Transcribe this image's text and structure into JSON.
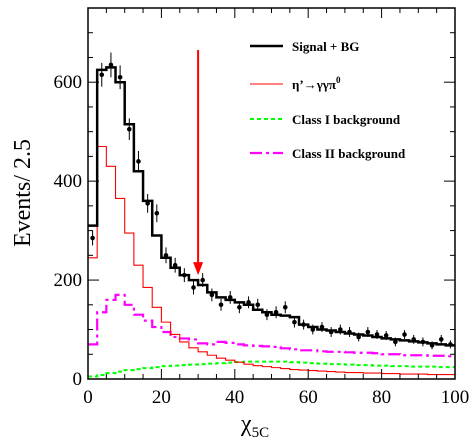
{
  "chart_data": {
    "type": "line",
    "ylabel": "Events/ 2.5",
    "xlabel_main": "χ",
    "xlabel_sub": "5C",
    "xlim": [
      0,
      100
    ],
    "ylim": [
      0,
      750
    ],
    "x_ticks": [
      0,
      20,
      40,
      60,
      80,
      100
    ],
    "y_ticks": [
      0,
      200,
      400,
      600
    ],
    "grid": false,
    "legend_position": "top-right",
    "bin_edges": [
      0,
      2.5,
      5,
      7.5,
      10,
      12.5,
      15,
      17.5,
      20,
      22.5,
      25,
      27.5,
      30,
      32.5,
      35,
      37.5,
      40,
      42.5,
      45,
      47.5,
      50,
      52.5,
      55,
      57.5,
      60,
      62.5,
      65,
      67.5,
      70,
      72.5,
      75,
      77.5,
      80,
      82.5,
      85,
      87.5,
      90,
      92.5,
      95,
      97.5,
      100
    ],
    "series": [
      {
        "name": "Signal + BG",
        "color": "#000000",
        "style": "step-solid-thick",
        "values": [
          310,
          625,
          630,
          600,
          515,
          420,
          360,
          290,
          245,
          225,
          210,
          200,
          190,
          175,
          165,
          160,
          155,
          150,
          140,
          135,
          130,
          128,
          125,
          110,
          105,
          100,
          98,
          95,
          92,
          90,
          88,
          85,
          82,
          80,
          78,
          76,
          74,
          72,
          70,
          68
        ]
      },
      {
        "name": "η’→γγπ",
        "name_sup": "0",
        "color": "#ff0000",
        "style": "step-solid-thin",
        "values": [
          245,
          470,
          430,
          365,
          295,
          230,
          185,
          145,
          115,
          90,
          75,
          63,
          55,
          48,
          42,
          38,
          34,
          30,
          27,
          25,
          23,
          21,
          19,
          18,
          17,
          16,
          15,
          14,
          13,
          13,
          12,
          12,
          11,
          11,
          10,
          10,
          10,
          9,
          9,
          9
        ]
      },
      {
        "name": "Class I background",
        "color": "#00ff00",
        "style": "step-dashed",
        "values": [
          5,
          8,
          12,
          15,
          18,
          20,
          22,
          24,
          26,
          27,
          28,
          29,
          30,
          31,
          32,
          33,
          34,
          35,
          35,
          35,
          35,
          35,
          34,
          33,
          32,
          31,
          30,
          30,
          29,
          28,
          28,
          27,
          27,
          26,
          26,
          25,
          25,
          25,
          24,
          24
        ]
      },
      {
        "name": "Class II background",
        "color": "#ff00ff",
        "style": "step-dashdot",
        "values": [
          70,
          135,
          160,
          170,
          150,
          130,
          118,
          105,
          95,
          85,
          82,
          80,
          72,
          70,
          75,
          73,
          70,
          68,
          67,
          66,
          65,
          62,
          60,
          58,
          58,
          56,
          55,
          55,
          54,
          53,
          53,
          52,
          50,
          50,
          48,
          48,
          48,
          47,
          47,
          46
        ]
      }
    ],
    "data_points": {
      "x": [
        1.25,
        3.75,
        6.25,
        8.75,
        11.25,
        13.75,
        16.25,
        18.75,
        21.25,
        23.75,
        26.25,
        28.75,
        31.25,
        33.75,
        36.25,
        38.75,
        41.25,
        43.75,
        46.25,
        48.75,
        51.25,
        53.75,
        56.25,
        58.75,
        61.25,
        63.75,
        66.25,
        68.75,
        71.25,
        73.75,
        76.25,
        78.75,
        81.25,
        83.75,
        86.25,
        88.75,
        91.25,
        93.75,
        96.25,
        98.75
      ],
      "y": [
        285,
        615,
        635,
        610,
        505,
        440,
        355,
        335,
        250,
        230,
        210,
        185,
        200,
        170,
        150,
        165,
        145,
        155,
        150,
        130,
        135,
        145,
        115,
        110,
        100,
        105,
        95,
        100,
        95,
        85,
        95,
        90,
        88,
        75,
        90,
        80,
        75,
        68,
        80,
        70
      ],
      "err": [
        15,
        24,
        25,
        24,
        22,
        21,
        19,
        18,
        16,
        15,
        14,
        14,
        14,
        13,
        12,
        13,
        12,
        12,
        12,
        11,
        12,
        12,
        11,
        10,
        10,
        10,
        10,
        10,
        10,
        9,
        10,
        9,
        9,
        9,
        9,
        9,
        9,
        8,
        9,
        8
      ]
    },
    "annotation": {
      "type": "arrow",
      "color": "#ff0000",
      "x": 30,
      "y_from": 665,
      "y_to": 210
    }
  }
}
